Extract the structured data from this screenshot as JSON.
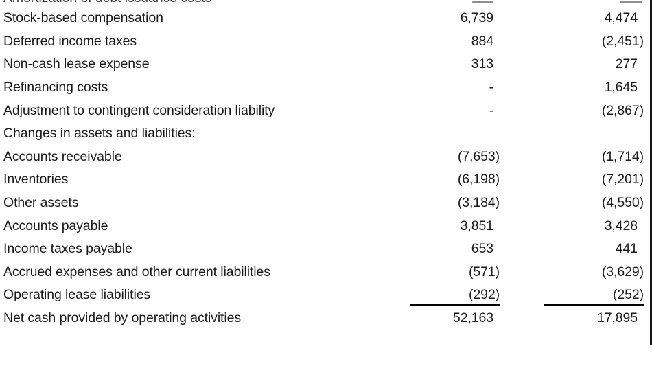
{
  "statement": {
    "partial_top_row": {
      "label": "Amortization of debt issuance costs"
    },
    "columns": [
      "col1",
      "col2"
    ],
    "rows": [
      {
        "label": "Stock-based compensation",
        "col1": "6,739",
        "col2": "4,474"
      },
      {
        "label": "Deferred income taxes",
        "col1": "884",
        "col2": "(2,451)"
      },
      {
        "label": "Non-cash lease expense",
        "col1": "313",
        "col2": "277"
      },
      {
        "label": "Refinancing costs",
        "col1": "-",
        "col2": "1,645"
      },
      {
        "label": "Adjustment to contingent consideration liability",
        "col1": "-",
        "col2": "(2,867)"
      },
      {
        "label": "Changes in assets and liabilities:",
        "col1": "",
        "col2": ""
      },
      {
        "label": "Accounts receivable",
        "col1": "(7,653)",
        "col2": "(1,714)"
      },
      {
        "label": "Inventories",
        "col1": "(6,198)",
        "col2": "(7,201)"
      },
      {
        "label": "Other assets",
        "col1": "(3,184)",
        "col2": "(4,550)"
      },
      {
        "label": "Accounts payable",
        "col1": "3,851",
        "col2": "3,428"
      },
      {
        "label": "Income taxes payable",
        "col1": "653",
        "col2": "441"
      },
      {
        "label": "Accrued expenses and other current liabilities",
        "col1": "(571)",
        "col2": "(3,629)"
      },
      {
        "label": "Operating lease liabilities",
        "col1": "(292)",
        "col2": "(252)",
        "underline": true
      },
      {
        "label": "Net cash provided by operating activities",
        "col1": "52,163",
        "col2": "17,895",
        "is_total": true
      }
    ],
    "colors": {
      "text": "#1a1a1a",
      "rule": "#000000",
      "background": "#ffffff"
    }
  }
}
